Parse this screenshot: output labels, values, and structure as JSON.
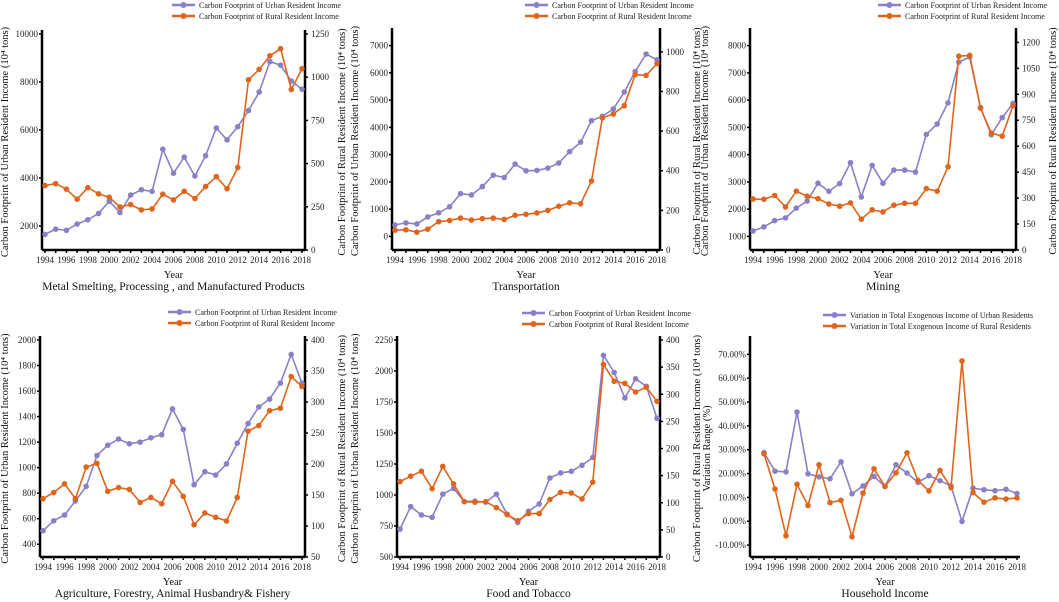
{
  "colors": {
    "urban": "#8a80c8",
    "rural": "#e0651c",
    "axis": "#000000"
  },
  "chart_data": [
    {
      "type": "line",
      "title": "Metal Smelting, Processing , and Manufactured Products",
      "xlabel": "Year",
      "ylabel": "Carbon Footprint of Urban Resident Income  (10⁴ tons)",
      "ylabel_right": "Carbon Footprint of Rural Resident Income  (10⁴ tons)",
      "x": [
        1994,
        1995,
        1996,
        1997,
        1998,
        1999,
        2000,
        2001,
        2002,
        2003,
        2004,
        2005,
        2006,
        2007,
        2008,
        2009,
        2010,
        2011,
        2012,
        2013,
        2014,
        2015,
        2016,
        2017,
        2018
      ],
      "xticks": [
        "1994",
        "1996",
        "1998",
        "2000",
        "2002",
        "2004",
        "2006",
        "2008",
        "2010",
        "2012",
        "2014",
        "2016",
        "2018"
      ],
      "ylim": [
        1000,
        10000
      ],
      "yticks": [
        2000,
        4000,
        6000,
        8000,
        10000
      ],
      "ytick_labels": [
        "2000",
        "4000",
        "6000",
        "8000",
        "10000"
      ],
      "ylim_right": [
        0,
        1250
      ],
      "yticks_right": [
        0,
        250,
        500,
        750,
        1000,
        1250
      ],
      "ytick_labels_right": [
        "0",
        "250",
        "500",
        "750",
        "1000",
        "1250"
      ],
      "series": [
        {
          "name": "Carbon Footprint of Urban Resident Income",
          "axis": "left",
          "color_key": "urban",
          "values": [
            1650,
            1870,
            1820,
            2080,
            2260,
            2520,
            3030,
            2560,
            3290,
            3510,
            3440,
            5200,
            4200,
            4870,
            4080,
            4930,
            6080,
            5590,
            6140,
            6810,
            7580,
            8850,
            8700,
            8040,
            7700
          ]
        },
        {
          "name": "Carbon Footprint of Rural Resident Income",
          "axis": "right",
          "color_key": "rural",
          "values": [
            373,
            384,
            352,
            294,
            361,
            325,
            305,
            249,
            263,
            232,
            238,
            323,
            290,
            340,
            298,
            367,
            425,
            355,
            477,
            985,
            1045,
            1124,
            1165,
            929,
            1049
          ]
        }
      ]
    },
    {
      "type": "line",
      "title": "Transportation",
      "xlabel": "Year",
      "ylabel": "Carbon Footprint of Urban Resident Income  (10⁴ tons)",
      "ylabel_right": "Carbon Footprint of Rural Resident Income  (10⁴ tons)",
      "x": [
        1994,
        1995,
        1996,
        1997,
        1998,
        1999,
        2000,
        2001,
        2002,
        2003,
        2004,
        2005,
        2006,
        2007,
        2008,
        2009,
        2010,
        2011,
        2012,
        2013,
        2014,
        2015,
        2016,
        2017,
        2018
      ],
      "xticks": [
        "1994",
        "1996",
        "1998",
        "2000",
        "2002",
        "2004",
        "2006",
        "2008",
        "2010",
        "2012",
        "2014",
        "2016",
        "2018"
      ],
      "ylim": [
        -500,
        7500
      ],
      "yticks": [
        0,
        1000,
        2000,
        3000,
        4000,
        5000,
        6000,
        7000
      ],
      "ytick_labels": [
        "0",
        "1000",
        "2000",
        "3000",
        "4000",
        "5000",
        "6000",
        "7000"
      ],
      "ylim_right": [
        0,
        1100
      ],
      "yticks_right": [
        0,
        200,
        400,
        600,
        800,
        1000
      ],
      "ytick_labels_right": [
        "0",
        "200",
        "400",
        "600",
        "800",
        "1000"
      ],
      "series": [
        {
          "name": "Carbon Footprint of Urban Resident Income",
          "axis": "left",
          "color_key": "urban",
          "values": [
            420,
            494,
            457,
            716,
            864,
            1086,
            1568,
            1519,
            1827,
            2247,
            2160,
            2654,
            2407,
            2420,
            2506,
            2691,
            3111,
            3457,
            4247,
            4407,
            4679,
            5296,
            6049,
            6691,
            6481
          ]
        },
        {
          "name": "Carbon Footprint of Rural Resident Income",
          "axis": "right",
          "color_key": "rural",
          "values": [
            100,
            102,
            90,
            105,
            143,
            149,
            161,
            151,
            158,
            161,
            154,
            175,
            180,
            187,
            200,
            221,
            238,
            233,
            348,
            667,
            686,
            728,
            885,
            881,
            941
          ]
        }
      ]
    },
    {
      "type": "line",
      "title": "Mining",
      "xlabel": "Year",
      "ylabel": "Carbon Footprint of Urban Resident Income  (10⁴ tons)",
      "ylabel_right": "Carbon Footprint of Rural Resident Income  (10⁴ tons)",
      "x": [
        1994,
        1995,
        1996,
        1997,
        1998,
        1999,
        2000,
        2001,
        2002,
        2003,
        2004,
        2005,
        2006,
        2007,
        2008,
        2009,
        2010,
        2011,
        2012,
        2013,
        2014,
        2015,
        2016,
        2017,
        2018
      ],
      "xticks": [
        "1994",
        "1996",
        "1998",
        "2000",
        "2002",
        "2004",
        "2006",
        "2008",
        "2010",
        "2012",
        "2014",
        "2016",
        "2018"
      ],
      "ylim": [
        500,
        8500
      ],
      "yticks": [
        1000,
        2000,
        3000,
        4000,
        5000,
        6000,
        7000,
        8000
      ],
      "ytick_labels": [
        "1000",
        "2000",
        "3000",
        "4000",
        "5000",
        "6000",
        "7000",
        "8000"
      ],
      "ylim_right": [
        0,
        1260
      ],
      "yticks_right": [
        0,
        150,
        300,
        450,
        600,
        750,
        900,
        1050,
        1200
      ],
      "ytick_labels_right": [
        "0",
        "150",
        "300",
        "450",
        "600",
        "750",
        "900",
        "1050",
        "1200"
      ],
      "series": [
        {
          "name": "Carbon Footprint of Urban Resident Income",
          "axis": "left",
          "color_key": "urban",
          "values": [
            1198,
            1346,
            1580,
            1679,
            2037,
            2296,
            2951,
            2654,
            2938,
            3704,
            2444,
            3605,
            2951,
            3432,
            3432,
            3358,
            4741,
            5123,
            5901,
            7395,
            7580,
            5728,
            4728,
            5358,
            5877
          ]
        },
        {
          "name": "Carbon Footprint of Rural Resident Income",
          "axis": "right",
          "color_key": "rural",
          "values": [
            295,
            293,
            315,
            249,
            340,
            311,
            297,
            266,
            253,
            272,
            178,
            232,
            220,
            259,
            270,
            270,
            355,
            340,
            481,
            1120,
            1125,
            820,
            676,
            658,
            834
          ]
        }
      ]
    },
    {
      "type": "line",
      "title": "Agriculture, Forestry, Animal Husbandry& Fishery",
      "xlabel": "Year",
      "ylabel": "Carbon Footprint of Urban Resident Income    (10⁴ tons)",
      "ylabel_right": "Carbon Footprint of Rural Resident Income    (10⁴ tons)",
      "x": [
        1994,
        1995,
        1996,
        1997,
        1998,
        1999,
        2000,
        2001,
        2002,
        2003,
        2004,
        2005,
        2006,
        2007,
        2008,
        2009,
        2010,
        2011,
        2012,
        2013,
        2014,
        2015,
        2016,
        2017,
        2018
      ],
      "xticks": [
        "1994",
        "1996",
        "1998",
        "2000",
        "2002",
        "2004",
        "2006",
        "2008",
        "2010",
        "2012",
        "2014",
        "2016",
        "2018"
      ],
      "ylim": [
        300,
        2000
      ],
      "yticks": [
        400,
        600,
        800,
        1000,
        1200,
        1400,
        1600,
        1800,
        2000
      ],
      "ytick_labels": [
        "400",
        "600",
        "800",
        "1000",
        "1200",
        "1400",
        "1600",
        "1800",
        "2000"
      ],
      "ylim_right": [
        50,
        400
      ],
      "yticks_right": [
        50,
        100,
        150,
        200,
        250,
        300,
        350,
        400
      ],
      "ytick_labels_right": [
        "50",
        "100",
        "150",
        "200",
        "250",
        "300",
        "350",
        "400"
      ],
      "series": [
        {
          "name": "Carbon Footprint of Urban Resident Income",
          "axis": "left",
          "color_key": "urban",
          "values": [
            505,
            584,
            629,
            739,
            853,
            1095,
            1176,
            1224,
            1187,
            1200,
            1234,
            1258,
            1460,
            1300,
            866,
            968,
            942,
            1029,
            1192,
            1345,
            1476,
            1537,
            1663,
            1887,
            1661
          ]
        },
        {
          "name": "Carbon Footprint of Rural Resident Income",
          "axis": "right",
          "color_key": "rural",
          "values": [
            144,
            154,
            168,
            144,
            195,
            201,
            156,
            162,
            159,
            138,
            146,
            136,
            172,
            148,
            102,
            121,
            114,
            108,
            146,
            253,
            262,
            286,
            290,
            341,
            325
          ]
        }
      ]
    },
    {
      "type": "line",
      "title": "Food and Tobacco",
      "xlabel": "Year",
      "ylabel": "Carbon Footprint of Urban Resident Income    (10⁴ tons)",
      "ylabel_right": "Carbon Footprint of Rural Resident Income    (10⁴ tons)",
      "x": [
        1994,
        1995,
        1996,
        1997,
        1998,
        1999,
        2000,
        2001,
        2002,
        2003,
        2004,
        2005,
        2006,
        2007,
        2008,
        2009,
        2010,
        2011,
        2012,
        2013,
        2014,
        2015,
        2016,
        2017,
        2018
      ],
      "xticks": [
        "1994",
        "1996",
        "1998",
        "2000",
        "2002",
        "2004",
        "2006",
        "2008",
        "2010",
        "2012",
        "2014",
        "2016",
        "2018"
      ],
      "ylim": [
        500,
        2250
      ],
      "yticks": [
        500,
        750,
        1000,
        1250,
        1500,
        1750,
        2000,
        2250
      ],
      "ytick_labels": [
        "500",
        "750",
        "1000",
        "1250",
        "1500",
        "1750",
        "2000",
        "2250"
      ],
      "ylim_right": [
        0,
        400
      ],
      "yticks_right": [
        0,
        50,
        100,
        150,
        200,
        250,
        300,
        350,
        400
      ],
      "ytick_labels_right": [
        "0",
        "50",
        "100",
        "150",
        "200",
        "250",
        "300",
        "350",
        "400"
      ],
      "series": [
        {
          "name": "Carbon Footprint of Urban Resident Income",
          "axis": "left",
          "color_key": "urban",
          "values": [
            725,
            907,
            839,
            820,
            1007,
            1053,
            947,
            950,
            942,
            1007,
            845,
            779,
            869,
            928,
            1137,
            1178,
            1191,
            1240,
            1302,
            2126,
            1988,
            1783,
            1937,
            1877,
            1619
          ]
        },
        {
          "name": "Carbon Footprint of Rural Resident Income",
          "axis": "right",
          "color_key": "rural",
          "values": [
            139,
            149,
            158,
            126,
            167,
            135,
            102,
            101,
            102,
            91,
            78,
            67,
            80,
            80,
            106,
            119,
            118,
            107,
            138,
            355,
            324,
            320,
            304,
            313,
            287
          ]
        }
      ]
    },
    {
      "type": "line",
      "title": "Household Income",
      "xlabel": "Year",
      "ylabel": "Variation Range (%)",
      "x": [
        1995,
        1996,
        1997,
        1998,
        1999,
        2000,
        2001,
        2002,
        2003,
        2004,
        2005,
        2006,
        2007,
        2008,
        2009,
        2010,
        2011,
        2012,
        2013,
        2014,
        2015,
        2016,
        2017,
        2018
      ],
      "xlim": [
        1994,
        2018
      ],
      "xticks": [
        "1994",
        "1996",
        "1998",
        "2000",
        "2002",
        "2004",
        "2006",
        "2008",
        "2010",
        "2012",
        "2014",
        "2016",
        "2018"
      ],
      "ylim": [
        -15,
        76
      ],
      "yticks": [
        -10,
        0,
        10,
        20,
        30,
        40,
        50,
        60,
        70
      ],
      "ytick_labels": [
        "-10.00%",
        "0.00%",
        "10.00%",
        "20.00%",
        "30.00%",
        "40.00%",
        "50.00%",
        "60.00%",
        "70.00%"
      ],
      "series": [
        {
          "name": "Variation in Total Exogenous Income of Urban Residents",
          "axis": "left",
          "color_key": "urban",
          "values": [
            28.8,
            21.0,
            20.7,
            45.8,
            19.9,
            18.6,
            17.8,
            24.9,
            11.5,
            14.8,
            18.8,
            14.6,
            23.7,
            20.2,
            16.3,
            19.1,
            17.0,
            14.8,
            -0.1,
            13.9,
            13.2,
            12.8,
            13.4,
            11.6
          ]
        },
        {
          "name": "Variation in Total Exogenous Income of Rural Residents",
          "axis": "left",
          "color_key": "rural",
          "values": [
            28.3,
            13.5,
            -6.1,
            15.5,
            6.6,
            23.7,
            7.8,
            8.8,
            -6.5,
            11.8,
            22.0,
            14.6,
            20.3,
            28.7,
            17.1,
            12.7,
            21.3,
            14.1,
            67.2,
            12.0,
            8.0,
            9.8,
            9.3,
            9.8
          ]
        }
      ]
    }
  ]
}
